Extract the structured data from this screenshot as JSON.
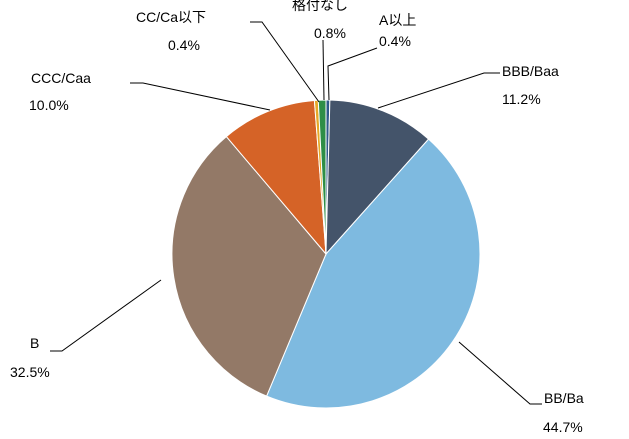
{
  "chart_data": {
    "type": "pie",
    "slices": [
      {
        "name": "A以上",
        "value": 0.4,
        "value_label": "0.4%",
        "color": "#2E5A8A"
      },
      {
        "name": "BBB/Baa",
        "value": 11.2,
        "value_label": "11.2%",
        "color": "#44546A"
      },
      {
        "name": "BB/Ba",
        "value": 44.7,
        "value_label": "44.7%",
        "color": "#7EBAE0"
      },
      {
        "name": "B",
        "value": 32.5,
        "value_label": "32.5%",
        "color": "#937967"
      },
      {
        "name": "CCC/Caa",
        "value": 10.0,
        "value_label": "10.0%",
        "color": "#D56327"
      },
      {
        "name": "CC/Ca以下",
        "value": 0.4,
        "value_label": "0.4%",
        "color": "#E6A828"
      },
      {
        "name": "格付なし",
        "value": 0.8,
        "value_label": "0.8%",
        "color": "#2E8E47"
      }
    ],
    "start_angle": "12 o'clock",
    "direction": "clockwise",
    "unit": "%"
  }
}
